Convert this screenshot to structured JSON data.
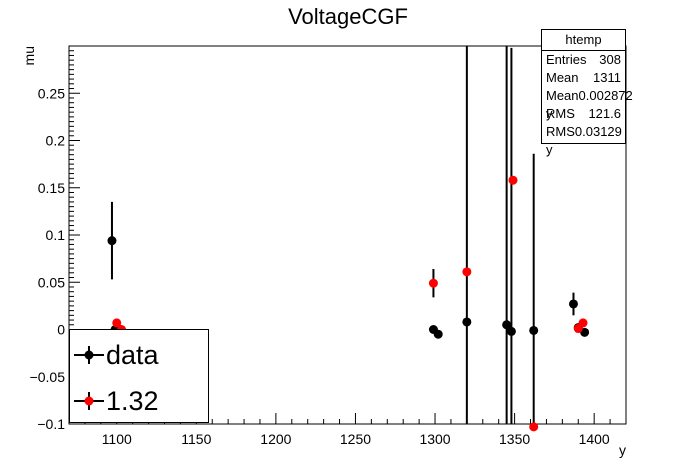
{
  "chart_data": {
    "type": "scatter",
    "title": "VoltageCGF",
    "xlabel": "y",
    "ylabel": "mu",
    "xlim": [
      1070,
      1420
    ],
    "ylim": [
      -0.1,
      0.3
    ],
    "xticks": [
      1100,
      1150,
      1200,
      1250,
      1300,
      1350,
      1400
    ],
    "yticks": [
      -0.1,
      -0.05,
      0,
      0.05,
      0.1,
      0.15,
      0.2,
      0.25
    ],
    "ytick_labels": [
      "−0.1",
      "−0.05",
      "0",
      "0.05",
      "0.1",
      "0.15",
      "0.2",
      "0.25"
    ],
    "grid": false,
    "legend_position": "bottom-left",
    "series": [
      {
        "name": "data",
        "color": "#000000",
        "points": [
          {
            "x": 1097,
            "y": 0.094,
            "err": 0.041
          },
          {
            "x": 1099,
            "y": 0.0,
            "err": 0.004
          },
          {
            "x": 1102,
            "y": 0.0,
            "err": 0.004
          },
          {
            "x": 1299,
            "y": 0.0,
            "err": 0.003
          },
          {
            "x": 1302,
            "y": -0.005,
            "err": 0.003
          },
          {
            "x": 1320,
            "y": 0.008,
            "err": 0.3
          },
          {
            "x": 1345,
            "y": 0.005,
            "err": 0.3
          },
          {
            "x": 1348,
            "y": -0.002,
            "err": 0.3
          },
          {
            "x": 1362,
            "y": -0.001,
            "err": 0.187
          },
          {
            "x": 1387,
            "y": 0.027,
            "err": 0.012
          },
          {
            "x": 1390,
            "y": 0.002,
            "err": 0.004
          },
          {
            "x": 1394,
            "y": -0.003,
            "err": 0.003
          }
        ]
      },
      {
        "name": "1.32",
        "color": "#ff0000",
        "points": [
          {
            "x": 1100,
            "y": 0.007,
            "err": 0.004
          },
          {
            "x": 1103,
            "y": 0.0,
            "err": 0.004
          },
          {
            "x": 1299,
            "y": 0.049,
            "err": 0.015
          },
          {
            "x": 1320,
            "y": 0.061,
            "err": 0.003
          },
          {
            "x": 1349,
            "y": 0.158,
            "err": 0.003
          },
          {
            "x": 1362,
            "y": -0.103,
            "err": 0.003
          },
          {
            "x": 1390,
            "y": 0.001,
            "err": 0.003
          },
          {
            "x": 1393,
            "y": 0.007,
            "err": 0.003
          }
        ]
      }
    ]
  },
  "stats_box": {
    "title": "htemp",
    "rows": [
      {
        "label": "Entries",
        "value": "308"
      },
      {
        "label": "Mean",
        "value": "1311"
      },
      {
        "label": "Mean y",
        "value": "0.002872"
      },
      {
        "label": "RMS",
        "value": "121.6"
      },
      {
        "label": "RMS y",
        "value": "0.03129"
      }
    ]
  },
  "legend": {
    "entries": [
      {
        "label": "data",
        "color": "#000000"
      },
      {
        "label": "1.32",
        "color": "#ff0000"
      }
    ]
  }
}
